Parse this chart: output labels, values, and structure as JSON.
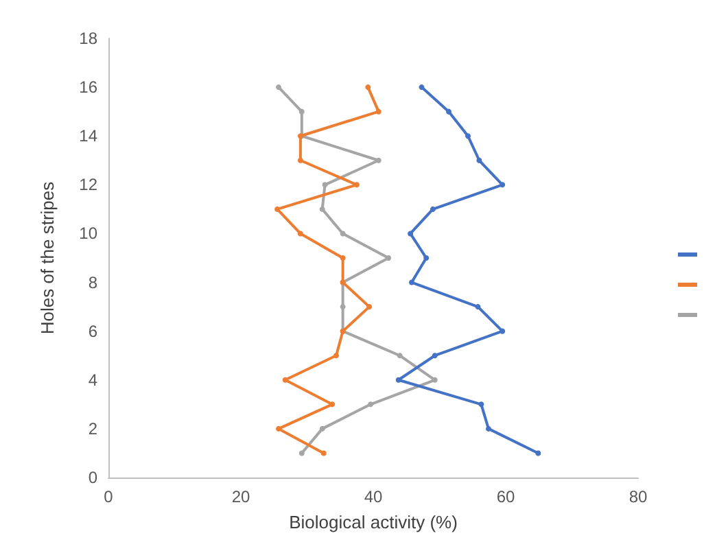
{
  "chart_data": {
    "type": "line",
    "xlabel": "Biological activity (%)",
    "ylabel": "Holes of the stripes",
    "xlim": [
      0,
      80
    ],
    "xticks": [
      0,
      20,
      40,
      60,
      80
    ],
    "ylim": [
      0,
      18
    ],
    "yticks": [
      0,
      2,
      4,
      6,
      8,
      10,
      12,
      14,
      16,
      18
    ],
    "grid": false,
    "marker": "circle",
    "line_style": "solid",
    "series": [
      {
        "color": "#4472c4",
        "x": [
          64.9,
          57.4,
          56.3,
          43.8,
          49.3,
          59.5,
          55.8,
          45.8,
          48,
          45.6,
          49,
          59.5,
          56,
          54.3,
          51.4,
          47.3
        ],
        "values": [
          1,
          2,
          3,
          4,
          5,
          6,
          7,
          8,
          9,
          10,
          11,
          12,
          13,
          14,
          15,
          16
        ]
      },
      {
        "color": "#ed7d31",
        "x": [
          32.5,
          25.7,
          33.8,
          26.7,
          34.4,
          35.4,
          39.4,
          35.4,
          35.4,
          29,
          25.5,
          37.5,
          29,
          29,
          40.8,
          39.2
        ],
        "values": [
          1,
          2,
          3,
          4,
          5,
          6,
          7,
          8,
          9,
          10,
          11,
          12,
          13,
          14,
          15,
          16
        ]
      },
      {
        "color": "#a5a5a5",
        "x": [
          29.2,
          32.3,
          39.6,
          49.3,
          44,
          35.4,
          35.4,
          35.4,
          42.3,
          35.4,
          32.3,
          32.7,
          40.8,
          29.2,
          29.2,
          25.7
        ],
        "values": [
          1,
          2,
          3,
          4,
          5,
          6,
          7,
          8,
          9,
          10,
          11,
          12,
          13,
          14,
          15,
          16
        ]
      }
    ]
  }
}
